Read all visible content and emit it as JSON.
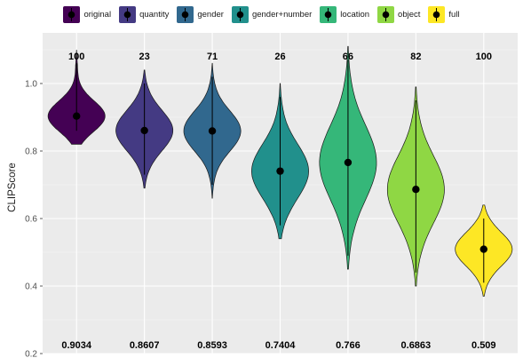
{
  "chart_data": {
    "type": "violin",
    "ylabel": "CLIPScore",
    "ylim": [
      0.2,
      1.15
    ],
    "yticks": [
      "0.2",
      "0.4",
      "0.6",
      "0.8",
      "1.0"
    ],
    "grid": true,
    "legend_position": "top",
    "series": [
      {
        "name": "original",
        "color": "#440154",
        "count_label": "100",
        "mean_label": "0.9034",
        "mean": 0.9034,
        "sd": 0.045,
        "min": 0.82,
        "max": 1.1
      },
      {
        "name": "quantity",
        "color": "#443A83",
        "count_label": "23",
        "mean_label": "0.8607",
        "mean": 0.8607,
        "sd": 0.06,
        "min": 0.69,
        "max": 1.04
      },
      {
        "name": "gender",
        "color": "#31688E",
        "count_label": "71",
        "mean_label": "0.8593",
        "mean": 0.8593,
        "sd": 0.06,
        "min": 0.66,
        "max": 1.06
      },
      {
        "name": "gender+number",
        "color": "#21908C",
        "count_label": "26",
        "mean_label": "0.7404",
        "mean": 0.7404,
        "sd": 0.08,
        "min": 0.54,
        "max": 1.0
      },
      {
        "name": "location",
        "color": "#35B779",
        "count_label": "66",
        "mean_label": "0.766",
        "mean": 0.766,
        "sd": 0.11,
        "min": 0.45,
        "max": 1.11
      },
      {
        "name": "object",
        "color": "#8FD744",
        "count_label": "82",
        "mean_label": "0.6863",
        "mean": 0.6863,
        "sd": 0.1,
        "min": 0.4,
        "max": 0.99
      },
      {
        "name": "full",
        "color": "#FDE725",
        "count_label": "100",
        "mean_label": "0.509",
        "mean": 0.509,
        "sd": 0.05,
        "min": 0.37,
        "max": 0.64
      }
    ]
  }
}
